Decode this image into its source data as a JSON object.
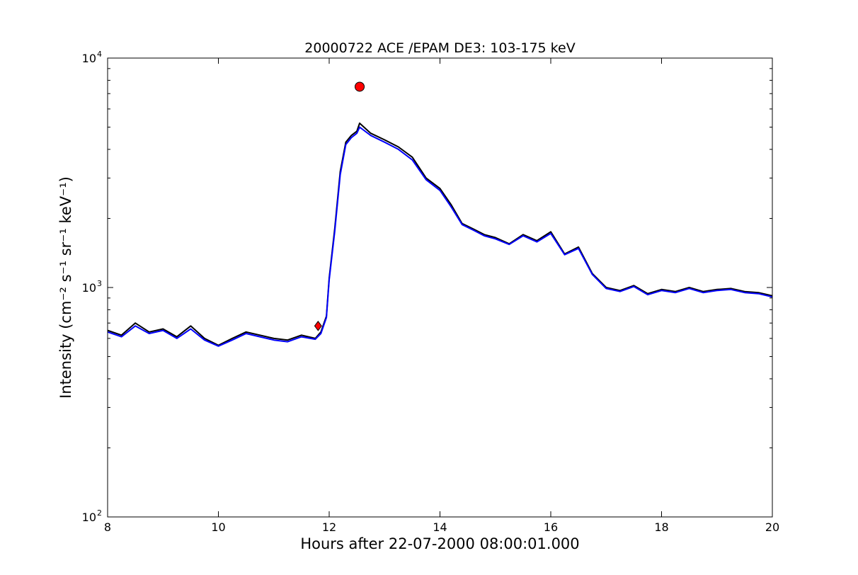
{
  "chart_data": {
    "type": "line",
    "title": "20000722 ACE /EPAM DE3: 103-175 keV",
    "xlabel": "Hours after 22-07-2000 08:00:01.000",
    "ylabel": "Intensity (cm⁻² s⁻¹ sr⁻¹ keV⁻¹)",
    "xlim": [
      8,
      20
    ],
    "ylim": [
      100,
      10000
    ],
    "yscale": "log",
    "grid": false,
    "x_ticks": [
      8,
      10,
      12,
      14,
      16,
      18,
      20
    ],
    "x_tick_labels": [
      "8",
      "10",
      "12",
      "14",
      "16",
      "18",
      "20"
    ],
    "y_ticks": [
      100,
      1000,
      10000
    ],
    "y_tick_labels": [
      "10",
      "10",
      "10"
    ],
    "y_tick_exponents": [
      "2",
      "3",
      "4"
    ],
    "series": [
      {
        "color": "#000000",
        "x": [
          8.0,
          8.25,
          8.5,
          8.75,
          9.0,
          9.25,
          9.5,
          9.75,
          10.0,
          10.25,
          10.5,
          10.75,
          11.0,
          11.25,
          11.5,
          11.75,
          11.85,
          11.95,
          12.0,
          12.1,
          12.2,
          12.3,
          12.4,
          12.5,
          12.55,
          12.75,
          13.0,
          13.25,
          13.5,
          13.75,
          14.0,
          14.2,
          14.4,
          14.6,
          14.8,
          15.0,
          15.25,
          15.5,
          15.75,
          16.0,
          16.25,
          16.5,
          16.75,
          17.0,
          17.25,
          17.5,
          17.75,
          18.0,
          18.25,
          18.5,
          18.75,
          19.0,
          19.25,
          19.5,
          19.75,
          20.0
        ],
        "y": [
          650,
          620,
          700,
          640,
          660,
          610,
          680,
          600,
          560,
          600,
          640,
          620,
          600,
          590,
          620,
          600,
          640,
          750,
          1100,
          1800,
          3200,
          4300,
          4600,
          4800,
          5200,
          4700,
          4400,
          4100,
          3700,
          3000,
          2700,
          2300,
          1900,
          1800,
          1700,
          1650,
          1550,
          1700,
          1600,
          1750,
          1400,
          1500,
          1150,
          1000,
          970,
          1020,
          940,
          980,
          960,
          1000,
          960,
          980,
          990,
          960,
          950,
          920
        ]
      },
      {
        "color": "#0000ff",
        "x": [
          8.0,
          8.25,
          8.5,
          8.75,
          9.0,
          9.25,
          9.5,
          9.75,
          10.0,
          10.25,
          10.5,
          10.75,
          11.0,
          11.25,
          11.5,
          11.75,
          11.85,
          11.95,
          12.0,
          12.1,
          12.2,
          12.3,
          12.4,
          12.5,
          12.55,
          12.75,
          13.0,
          13.25,
          13.5,
          13.75,
          14.0,
          14.2,
          14.4,
          14.6,
          14.8,
          15.0,
          15.25,
          15.5,
          15.75,
          16.0,
          16.25,
          16.5,
          16.75,
          17.0,
          17.25,
          17.5,
          17.75,
          18.0,
          18.25,
          18.5,
          18.75,
          19.0,
          19.25,
          19.5,
          19.75,
          20.0
        ],
        "y": [
          640,
          610,
          680,
          630,
          650,
          600,
          660,
          590,
          555,
          590,
          630,
          610,
          590,
          580,
          610,
          595,
          630,
          740,
          1080,
          1750,
          3100,
          4200,
          4500,
          4700,
          5000,
          4600,
          4300,
          4000,
          3600,
          2950,
          2650,
          2250,
          1880,
          1780,
          1680,
          1630,
          1540,
          1680,
          1580,
          1720,
          1390,
          1480,
          1140,
          990,
          960,
          1010,
          930,
          970,
          950,
          990,
          950,
          970,
          980,
          950,
          940,
          910
        ]
      }
    ],
    "markers": [
      {
        "shape": "circle",
        "color": "#ff0000",
        "x": 12.55,
        "y": 7500
      },
      {
        "shape": "diamond",
        "color": "#ff0000",
        "x": 11.8,
        "y": 680
      }
    ]
  }
}
